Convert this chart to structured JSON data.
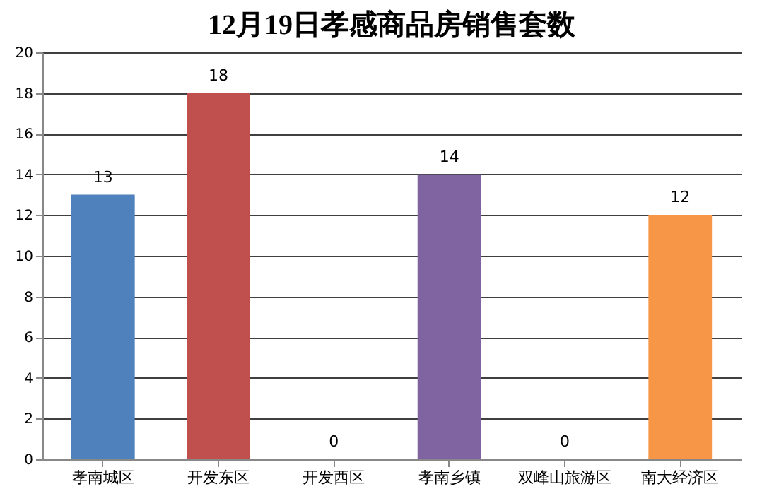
{
  "chart_data": {
    "type": "bar",
    "title": "12月19日孝感商品房销售套数",
    "categories": [
      "孝南城区",
      "开发东区",
      "开发西区",
      "孝南乡镇",
      "双峰山旅游区",
      "南大经济区"
    ],
    "values": [
      13,
      18,
      0,
      14,
      0,
      12
    ],
    "colors": [
      "#4f81bd",
      "#c0504d",
      "#9bbb59",
      "#8064a2",
      "#4bacc6",
      "#f79646"
    ],
    "ylim": [
      0,
      20
    ],
    "yticks": [
      0,
      2,
      4,
      6,
      8,
      10,
      12,
      14,
      16,
      18,
      20
    ],
    "grid": "y",
    "data_labels": true
  }
}
